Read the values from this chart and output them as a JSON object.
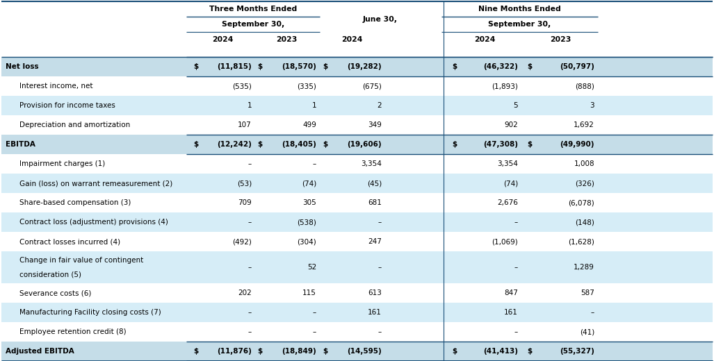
{
  "bg_white": "#ffffff",
  "bg_light_blue": "#d6eaf8",
  "bg_blue_header": "#bdd7ee",
  "bg_bold_row": "#c5dff0",
  "line_color": "#2e75b6",
  "text_color": "#000000",
  "rows": [
    {
      "label": "Net loss",
      "bold": true,
      "indent": false,
      "dollar": true,
      "v1": "(11,815)",
      "v2": "(18,570)",
      "v3": "(19,282)",
      "v4": "(46,322)",
      "v5": "(50,797)",
      "bg": "bold"
    },
    {
      "label": "Interest income, net",
      "bold": false,
      "indent": true,
      "dollar": false,
      "v1": "(535)",
      "v2": "(335)",
      "v3": "(675)",
      "v4": "(1,893)",
      "v5": "(888)",
      "bg": "white"
    },
    {
      "label": "Provision for income taxes",
      "bold": false,
      "indent": true,
      "dollar": false,
      "v1": "1",
      "v2": "1",
      "v3": "2",
      "v4": "5",
      "v5": "3",
      "bg": "blue"
    },
    {
      "label": "Depreciation and amortization",
      "bold": false,
      "indent": true,
      "dollar": false,
      "v1": "107",
      "v2": "499",
      "v3": "349",
      "v4": "902",
      "v5": "1,692",
      "bg": "white"
    },
    {
      "label": "EBITDA",
      "bold": true,
      "indent": false,
      "dollar": true,
      "v1": "(12,242)",
      "v2": "(18,405)",
      "v3": "(19,606)",
      "v4": "(47,308)",
      "v5": "(49,990)",
      "bg": "bold"
    },
    {
      "label": "Impairment charges (1)",
      "bold": false,
      "indent": true,
      "dollar": false,
      "v1": "–",
      "v2": "–",
      "v3": "3,354",
      "v4": "3,354",
      "v5": "1,008",
      "bg": "white"
    },
    {
      "label": "Gain (loss) on warrant remeasurement (2)",
      "bold": false,
      "indent": true,
      "dollar": false,
      "v1": "(53)",
      "v2": "(74)",
      "v3": "(45)",
      "v4": "(74)",
      "v5": "(326)",
      "bg": "blue"
    },
    {
      "label": "Share-based compensation (3)",
      "bold": false,
      "indent": true,
      "dollar": false,
      "v1": "709",
      "v2": "305",
      "v3": "681",
      "v4": "2,676",
      "v5": "(6,078)",
      "bg": "white"
    },
    {
      "label": "Contract loss (adjustment) provisions (4)",
      "bold": false,
      "indent": true,
      "dollar": false,
      "v1": "–",
      "v2": "(538)",
      "v3": "–",
      "v4": "–",
      "v5": "(148)",
      "bg": "blue"
    },
    {
      "label": "Contract losses incurred (4)",
      "bold": false,
      "indent": true,
      "dollar": false,
      "v1": "(492)",
      "v2": "(304)",
      "v3": "247",
      "v4": "(1,069)",
      "v5": "(1,628)",
      "bg": "white"
    },
    {
      "label": "Change in fair value of contingent\nconsideration (5)",
      "bold": false,
      "indent": true,
      "dollar": false,
      "v1": "–",
      "v2": "52",
      "v3": "–",
      "v4": "–",
      "v5": "1,289",
      "bg": "blue"
    },
    {
      "label": "Severance costs (6)",
      "bold": false,
      "indent": true,
      "dollar": false,
      "v1": "202",
      "v2": "115",
      "v3": "613",
      "v4": "847",
      "v5": "587",
      "bg": "white"
    },
    {
      "label": "Manufacturing Facility closing costs (7)",
      "bold": false,
      "indent": true,
      "dollar": false,
      "v1": "–",
      "v2": "–",
      "v3": "161",
      "v4": "161",
      "v5": "–",
      "bg": "blue"
    },
    {
      "label": "Employee retention credit (8)",
      "bold": false,
      "indent": true,
      "dollar": false,
      "v1": "–",
      "v2": "–",
      "v3": "–",
      "v4": "–",
      "v5": "(41)",
      "bg": "white"
    },
    {
      "label": "Adjusted EBITDA",
      "bold": true,
      "indent": false,
      "dollar": true,
      "v1": "(11,876)",
      "v2": "(18,849)",
      "v3": "(14,595)",
      "v4": "(41,413)",
      "v5": "(55,327)",
      "bg": "bold"
    }
  ]
}
